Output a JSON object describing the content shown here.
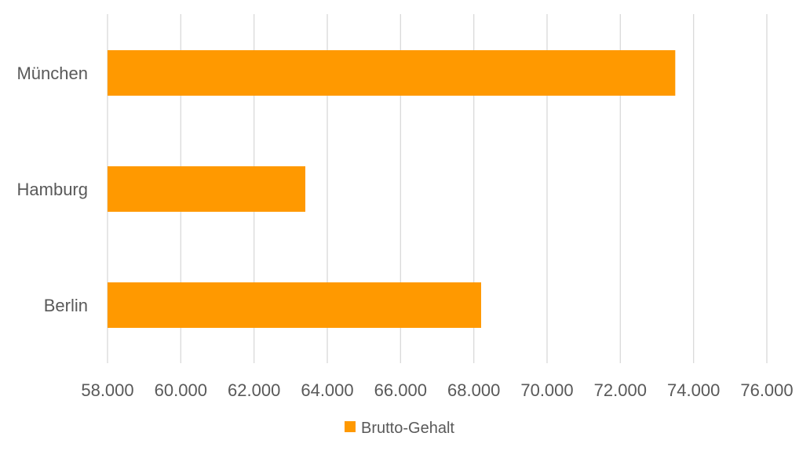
{
  "chart_data": {
    "type": "bar",
    "orientation": "horizontal",
    "categories": [
      "München",
      "Hamburg",
      "Berlin"
    ],
    "series": [
      {
        "name": "Brutto-Gehalt",
        "values": [
          73500,
          63400,
          68200
        ],
        "color": "#ff9900"
      }
    ],
    "xlim": [
      58000,
      76000
    ],
    "x_ticks": [
      58000,
      60000,
      62000,
      64000,
      66000,
      68000,
      70000,
      72000,
      74000,
      76000
    ],
    "x_tick_labels": [
      "58.000",
      "60.000",
      "62.000",
      "64.000",
      "66.000",
      "68.000",
      "70.000",
      "72.000",
      "74.000",
      "76.000"
    ],
    "grid": true,
    "legend_position": "bottom"
  }
}
